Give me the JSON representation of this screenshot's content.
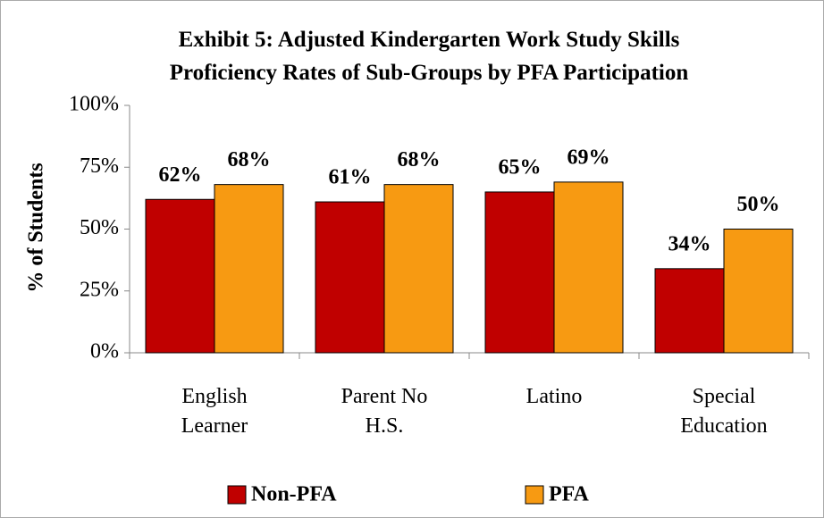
{
  "chart_data": {
    "type": "bar",
    "title": "Exhibit 5: Adjusted Kindergarten Work Study Skills Proficiency Rates of Sub-Groups by PFA Participation",
    "y_label": "% of Students",
    "categories": [
      "English Learner",
      "Parent No H.S.",
      "Latino",
      "Special Education"
    ],
    "series": [
      {
        "name": "Non-PFA",
        "color": "#c00000",
        "values": [
          62,
          61,
          65,
          34
        ],
        "value_labels": [
          "62%",
          "61%",
          "65%",
          "34%"
        ]
      },
      {
        "name": "PFA",
        "color": "#f79a12",
        "values": [
          68,
          68,
          69,
          50
        ],
        "value_labels": [
          "68%",
          "68%",
          "69%",
          "50%"
        ]
      }
    ],
    "ylim": [
      0,
      100
    ],
    "yticks": [
      {
        "value": 0,
        "label": "0%"
      },
      {
        "value": 25,
        "label": "25%"
      },
      {
        "value": 50,
        "label": "50%"
      },
      {
        "value": 75,
        "label": "75%"
      },
      {
        "value": 100,
        "label": "100%"
      }
    ],
    "grid": false,
    "legend": "bottom"
  }
}
